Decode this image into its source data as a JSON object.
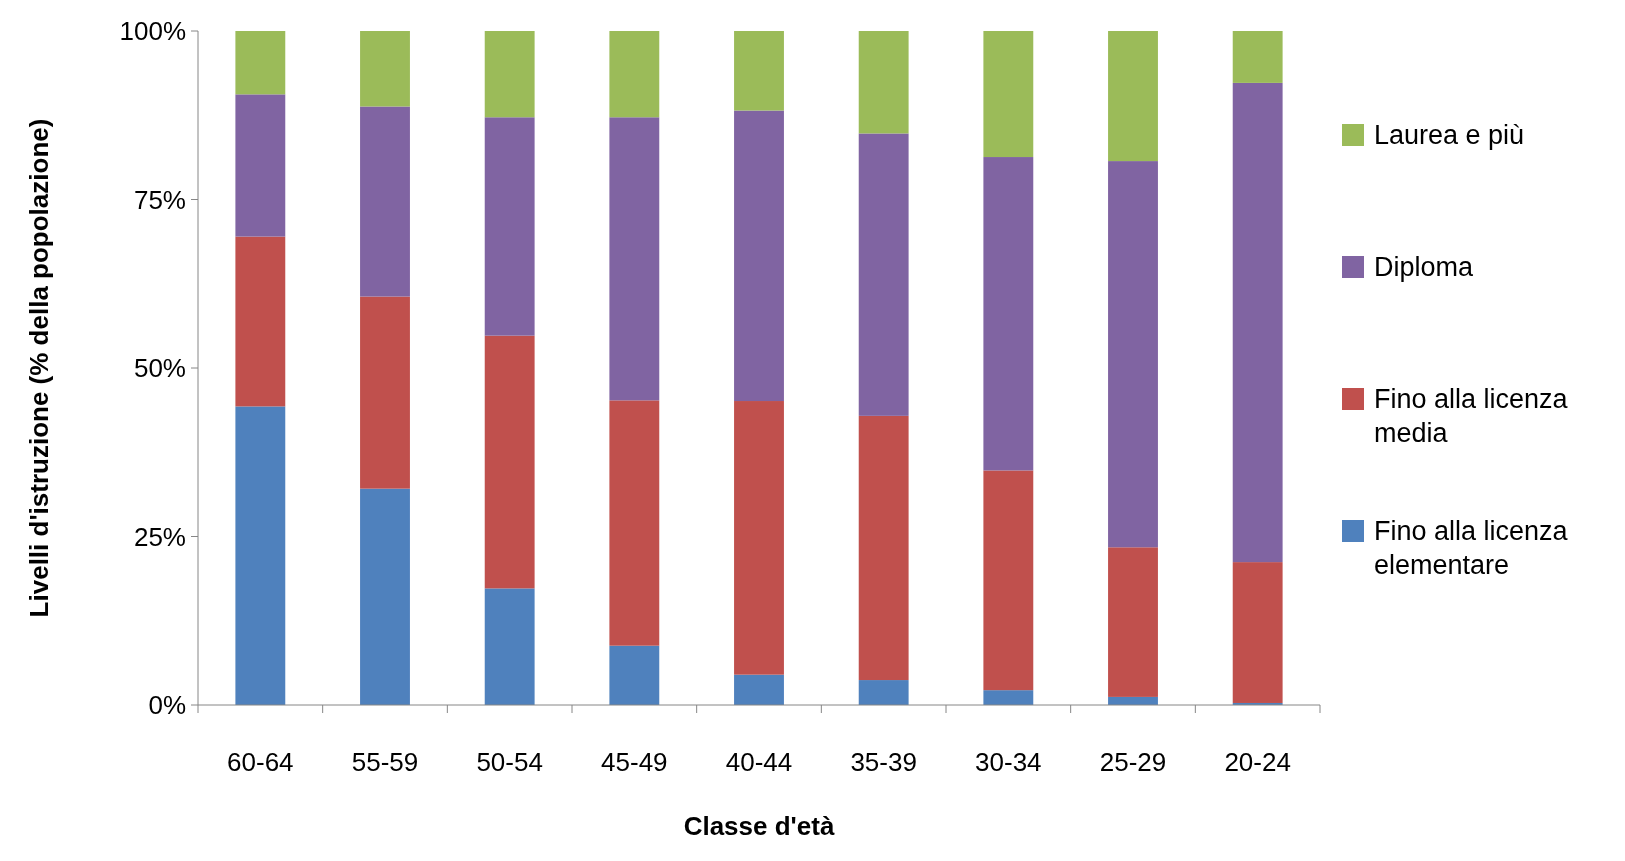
{
  "chart_data": {
    "type": "bar",
    "stacked": true,
    "xlabel": "Classe d'età",
    "ylabel": "Livelli d'istruzione (% della popolazione)",
    "categories": [
      "60-64",
      "55-59",
      "50-54",
      "45-49",
      "40-44",
      "35-39",
      "30-34",
      "25-29",
      "20-24"
    ],
    "series": [
      {
        "name": "Fino alla licenza elementare",
        "color": "#4f81bd",
        "values": [
          44.3,
          32.1,
          17.3,
          8.8,
          4.5,
          3.7,
          2.2,
          1.2,
          0.3
        ]
      },
      {
        "name": "Fino alla licenza media",
        "color": "#c0504d",
        "values": [
          25.2,
          28.5,
          37.5,
          36.4,
          40.6,
          39.2,
          32.6,
          22.2,
          20.9
        ]
      },
      {
        "name": "Diploma",
        "color": "#8064a2",
        "values": [
          21.1,
          28.2,
          32.4,
          42.0,
          43.1,
          41.9,
          46.5,
          57.3,
          71.1
        ]
      },
      {
        "name": "Laurea e più",
        "color": "#9bbb59",
        "values": [
          9.4,
          11.2,
          12.8,
          12.8,
          11.8,
          15.2,
          18.7,
          19.3,
          7.7
        ]
      }
    ],
    "ylim": [
      0,
      100
    ],
    "yticks": [
      {
        "value": 0,
        "label": "0%"
      },
      {
        "value": 25,
        "label": "25%"
      },
      {
        "value": 50,
        "label": "50%"
      },
      {
        "value": 75,
        "label": "75%"
      },
      {
        "value": 100,
        "label": "100%"
      }
    ],
    "grid": false,
    "legend": "right"
  }
}
